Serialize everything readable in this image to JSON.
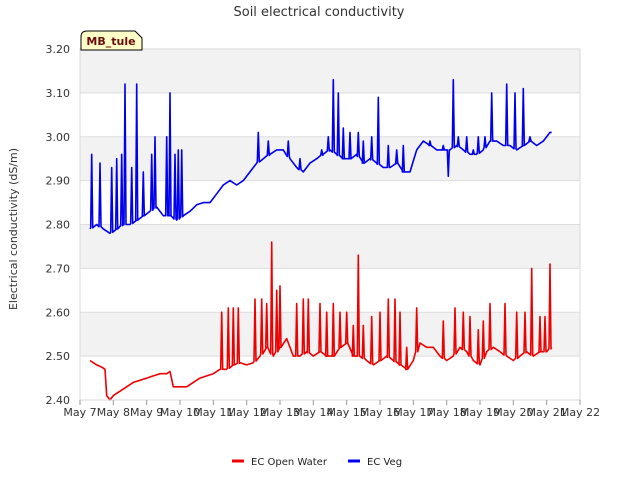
{
  "chart_data": {
    "type": "line",
    "title": "Soil electrical conductivity",
    "ylabel": "Electrical conductivity (dS/m)",
    "xlabel": "",
    "annotation": "MB_tule",
    "xlim": [
      7,
      22
    ],
    "ylim": [
      2.4,
      3.2
    ],
    "x_ticks": [
      {
        "value": 7,
        "label": "May 7"
      },
      {
        "value": 8,
        "label": "May 8"
      },
      {
        "value": 9,
        "label": "May 9"
      },
      {
        "value": 10,
        "label": "May 10"
      },
      {
        "value": 11,
        "label": "May 11"
      },
      {
        "value": 12,
        "label": "May 12"
      },
      {
        "value": 13,
        "label": "May 13"
      },
      {
        "value": 14,
        "label": "May 14"
      },
      {
        "value": 15,
        "label": "May 15"
      },
      {
        "value": 16,
        "label": "May 16"
      },
      {
        "value": 17,
        "label": "May 17"
      },
      {
        "value": 18,
        "label": "May 18"
      },
      {
        "value": 19,
        "label": "May 19"
      },
      {
        "value": 20,
        "label": "May 20"
      },
      {
        "value": 21,
        "label": "May 21"
      },
      {
        "value": 22,
        "label": "May 22"
      }
    ],
    "y_ticks": [
      {
        "value": 2.4,
        "label": "2.40"
      },
      {
        "value": 2.5,
        "label": "2.50"
      },
      {
        "value": 2.6,
        "label": "2.60"
      },
      {
        "value": 2.7,
        "label": "2.70"
      },
      {
        "value": 2.8,
        "label": "2.80"
      },
      {
        "value": 2.9,
        "label": "2.90"
      },
      {
        "value": 3.0,
        "label": "3.00"
      },
      {
        "value": 3.1,
        "label": "3.10"
      },
      {
        "value": 3.2,
        "label": "3.20"
      }
    ],
    "legend_position": "bottom-center",
    "series": [
      {
        "name": "EC Open Water",
        "color": "#ee0000",
        "points": [
          [
            7.3,
            2.49
          ],
          [
            7.5,
            2.48
          ],
          [
            7.65,
            2.475
          ],
          [
            7.75,
            2.47
          ],
          [
            7.8,
            2.41
          ],
          [
            7.9,
            2.4
          ],
          [
            8.0,
            2.41
          ],
          [
            8.2,
            2.42
          ],
          [
            8.4,
            2.43
          ],
          [
            8.6,
            2.44
          ],
          [
            8.8,
            2.445
          ],
          [
            9.0,
            2.45
          ],
          [
            9.2,
            2.455
          ],
          [
            9.4,
            2.46
          ],
          [
            9.6,
            2.46
          ],
          [
            9.7,
            2.465
          ],
          [
            9.8,
            2.43
          ],
          [
            10.0,
            2.43
          ],
          [
            10.2,
            2.43
          ],
          [
            10.4,
            2.44
          ],
          [
            10.6,
            2.45
          ],
          [
            10.8,
            2.455
          ],
          [
            11.0,
            2.46
          ],
          [
            11.2,
            2.47
          ],
          [
            11.4,
            2.47
          ],
          [
            11.6,
            2.48
          ],
          [
            11.8,
            2.485
          ],
          [
            12.0,
            2.48
          ],
          [
            12.2,
            2.485
          ],
          [
            12.4,
            2.5
          ],
          [
            12.6,
            2.52
          ],
          [
            12.8,
            2.5
          ],
          [
            13.0,
            2.52
          ],
          [
            13.2,
            2.54
          ],
          [
            13.4,
            2.5
          ],
          [
            13.6,
            2.5
          ],
          [
            13.8,
            2.51
          ],
          [
            14.0,
            2.5
          ],
          [
            14.2,
            2.51
          ],
          [
            14.4,
            2.5
          ],
          [
            14.6,
            2.5
          ],
          [
            14.8,
            2.52
          ],
          [
            15.0,
            2.53
          ],
          [
            15.2,
            2.5
          ],
          [
            15.4,
            2.5
          ],
          [
            15.6,
            2.49
          ],
          [
            15.8,
            2.48
          ],
          [
            16.0,
            2.49
          ],
          [
            16.2,
            2.5
          ],
          [
            16.4,
            2.49
          ],
          [
            16.6,
            2.48
          ],
          [
            16.8,
            2.47
          ],
          [
            17.0,
            2.49
          ],
          [
            17.2,
            2.53
          ],
          [
            17.4,
            2.52
          ],
          [
            17.6,
            2.52
          ],
          [
            17.8,
            2.5
          ],
          [
            18.0,
            2.49
          ],
          [
            18.2,
            2.5
          ],
          [
            18.4,
            2.52
          ],
          [
            18.6,
            2.51
          ],
          [
            18.8,
            2.49
          ],
          [
            19.0,
            2.48
          ],
          [
            19.2,
            2.51
          ],
          [
            19.4,
            2.52
          ],
          [
            19.6,
            2.51
          ],
          [
            19.8,
            2.5
          ],
          [
            20.0,
            2.49
          ],
          [
            20.2,
            2.5
          ],
          [
            20.4,
            2.51
          ],
          [
            20.6,
            2.5
          ],
          [
            20.8,
            2.51
          ],
          [
            21.0,
            2.51
          ],
          [
            21.15,
            2.52
          ]
        ],
        "spikes": [
          [
            11.25,
            2.6
          ],
          [
            11.45,
            2.61
          ],
          [
            11.6,
            2.61
          ],
          [
            11.75,
            2.61
          ],
          [
            12.25,
            2.63
          ],
          [
            12.45,
            2.63
          ],
          [
            12.6,
            2.62
          ],
          [
            12.75,
            2.76
          ],
          [
            12.9,
            2.65
          ],
          [
            13.0,
            2.66
          ],
          [
            13.5,
            2.62
          ],
          [
            13.7,
            2.63
          ],
          [
            13.85,
            2.63
          ],
          [
            14.2,
            2.62
          ],
          [
            14.4,
            2.6
          ],
          [
            14.6,
            2.62
          ],
          [
            14.8,
            2.6
          ],
          [
            15.0,
            2.6
          ],
          [
            15.2,
            2.57
          ],
          [
            15.35,
            2.73
          ],
          [
            15.5,
            2.57
          ],
          [
            15.75,
            2.59
          ],
          [
            16.0,
            2.6
          ],
          [
            16.25,
            2.63
          ],
          [
            16.45,
            2.63
          ],
          [
            16.6,
            2.6
          ],
          [
            16.8,
            2.52
          ],
          [
            17.1,
            2.61
          ],
          [
            17.9,
            2.58
          ],
          [
            18.25,
            2.61
          ],
          [
            18.5,
            2.6
          ],
          [
            18.7,
            2.59
          ],
          [
            18.95,
            2.56
          ],
          [
            19.1,
            2.58
          ],
          [
            19.3,
            2.62
          ],
          [
            19.75,
            2.62
          ],
          [
            20.1,
            2.6
          ],
          [
            20.35,
            2.6
          ],
          [
            20.55,
            2.7
          ],
          [
            20.8,
            2.59
          ],
          [
            20.95,
            2.59
          ],
          [
            21.1,
            2.71
          ],
          [
            21.2,
            2.71
          ]
        ]
      },
      {
        "name": "EC Veg",
        "color": "#0000ee",
        "points": [
          [
            7.3,
            2.79
          ],
          [
            7.5,
            2.8
          ],
          [
            7.7,
            2.79
          ],
          [
            7.9,
            2.78
          ],
          [
            8.1,
            2.79
          ],
          [
            8.3,
            2.8
          ],
          [
            8.5,
            2.8
          ],
          [
            8.7,
            2.81
          ],
          [
            8.9,
            2.82
          ],
          [
            9.1,
            2.83
          ],
          [
            9.3,
            2.84
          ],
          [
            9.5,
            2.82
          ],
          [
            9.7,
            2.82
          ],
          [
            9.9,
            2.81
          ],
          [
            10.1,
            2.82
          ],
          [
            10.3,
            2.83
          ],
          [
            10.5,
            2.845
          ],
          [
            10.7,
            2.85
          ],
          [
            10.9,
            2.85
          ],
          [
            11.1,
            2.87
          ],
          [
            11.3,
            2.89
          ],
          [
            11.5,
            2.9
          ],
          [
            11.7,
            2.89
          ],
          [
            11.9,
            2.9
          ],
          [
            12.1,
            2.92
          ],
          [
            12.3,
            2.94
          ],
          [
            12.5,
            2.95
          ],
          [
            12.7,
            2.96
          ],
          [
            12.9,
            2.97
          ],
          [
            13.1,
            2.97
          ],
          [
            13.3,
            2.95
          ],
          [
            13.5,
            2.93
          ],
          [
            13.7,
            2.92
          ],
          [
            13.9,
            2.94
          ],
          [
            14.1,
            2.95
          ],
          [
            14.3,
            2.96
          ],
          [
            14.5,
            2.97
          ],
          [
            14.7,
            2.96
          ],
          [
            14.9,
            2.95
          ],
          [
            15.1,
            2.95
          ],
          [
            15.3,
            2.96
          ],
          [
            15.5,
            2.94
          ],
          [
            15.7,
            2.95
          ],
          [
            15.9,
            2.94
          ],
          [
            16.1,
            2.93
          ],
          [
            16.3,
            2.93
          ],
          [
            16.5,
            2.94
          ],
          [
            16.7,
            2.92
          ],
          [
            16.9,
            2.92
          ],
          [
            17.1,
            2.97
          ],
          [
            17.3,
            2.99
          ],
          [
            17.5,
            2.98
          ],
          [
            17.7,
            2.97
          ],
          [
            17.9,
            2.97
          ],
          [
            18.1,
            2.97
          ],
          [
            18.3,
            2.98
          ],
          [
            18.5,
            2.97
          ],
          [
            18.7,
            2.96
          ],
          [
            18.9,
            2.96
          ],
          [
            19.1,
            2.97
          ],
          [
            19.3,
            2.99
          ],
          [
            19.5,
            2.99
          ],
          [
            19.7,
            2.98
          ],
          [
            19.9,
            2.98
          ],
          [
            20.1,
            2.97
          ],
          [
            20.3,
            2.98
          ],
          [
            20.5,
            2.99
          ],
          [
            20.7,
            2.98
          ],
          [
            20.9,
            2.99
          ],
          [
            21.1,
            3.01
          ],
          [
            21.15,
            3.01
          ]
        ],
        "spikes": [
          [
            7.35,
            2.96
          ],
          [
            7.6,
            2.94
          ],
          [
            7.95,
            2.93
          ],
          [
            8.1,
            2.95
          ],
          [
            8.25,
            2.96
          ],
          [
            8.35,
            3.12
          ],
          [
            8.55,
            2.93
          ],
          [
            8.7,
            3.12
          ],
          [
            8.9,
            2.92
          ],
          [
            9.15,
            2.96
          ],
          [
            9.25,
            3.0
          ],
          [
            9.6,
            3.0
          ],
          [
            9.7,
            3.1
          ],
          [
            9.85,
            2.96
          ],
          [
            9.95,
            2.97
          ],
          [
            10.05,
            2.97
          ],
          [
            12.35,
            3.01
          ],
          [
            12.65,
            2.99
          ],
          [
            13.25,
            2.99
          ],
          [
            13.6,
            2.95
          ],
          [
            14.25,
            2.97
          ],
          [
            14.45,
            3.0
          ],
          [
            14.6,
            3.13
          ],
          [
            14.75,
            3.1
          ],
          [
            14.9,
            3.02
          ],
          [
            15.1,
            3.01
          ],
          [
            15.35,
            3.01
          ],
          [
            15.5,
            2.99
          ],
          [
            15.75,
            3.0
          ],
          [
            15.95,
            3.09
          ],
          [
            16.25,
            2.98
          ],
          [
            16.5,
            2.97
          ],
          [
            16.7,
            2.98
          ],
          [
            17.5,
            2.99
          ],
          [
            17.9,
            2.98
          ],
          [
            18.05,
            2.91
          ],
          [
            18.2,
            3.13
          ],
          [
            18.35,
            3.0
          ],
          [
            18.6,
            3.0
          ],
          [
            18.8,
            2.97
          ],
          [
            18.95,
            3.0
          ],
          [
            19.15,
            3.0
          ],
          [
            19.35,
            3.1
          ],
          [
            19.8,
            3.12
          ],
          [
            20.05,
            3.1
          ],
          [
            20.3,
            3.11
          ],
          [
            20.5,
            3.0
          ]
        ]
      }
    ]
  }
}
